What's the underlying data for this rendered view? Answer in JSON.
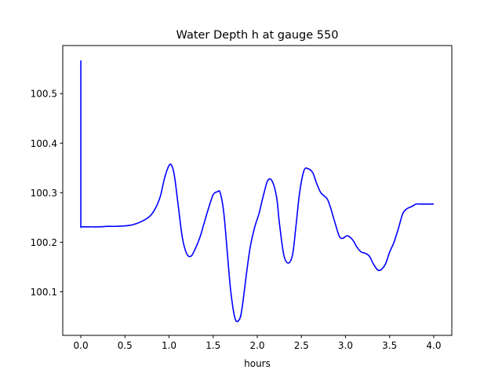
{
  "chart_data": {
    "type": "line",
    "title": "Water Depth h at gauge 550",
    "xlabel": "hours",
    "ylabel": "",
    "xlim": [
      -0.205,
      4.205
    ],
    "ylim": [
      100.012,
      100.597
    ],
    "xticks": [
      0.0,
      0.5,
      1.0,
      1.5,
      2.0,
      2.5,
      3.0,
      3.5,
      4.0
    ],
    "xtick_labels": [
      "0.0",
      "0.5",
      "1.0",
      "1.5",
      "2.0",
      "2.5",
      "3.0",
      "3.5",
      "4.0"
    ],
    "yticks": [
      100.1,
      100.2,
      100.3,
      100.4,
      100.5
    ],
    "ytick_labels": [
      "100.1",
      "100.2",
      "100.3",
      "100.4",
      "100.5"
    ],
    "grid": false,
    "series": [
      {
        "color": "#0000ff",
        "x": [
          0.0,
          0.0,
          0.0,
          0.1,
          0.2,
          0.3,
          0.4,
          0.5,
          0.55,
          0.6,
          0.65,
          0.7,
          0.75,
          0.8,
          0.85,
          0.9,
          0.95,
          1.0,
          1.03,
          1.06,
          1.1,
          1.15,
          1.2,
          1.25,
          1.3,
          1.35,
          1.4,
          1.45,
          1.5,
          1.55,
          1.58,
          1.62,
          1.66,
          1.7,
          1.75,
          1.8,
          1.83,
          1.88,
          1.92,
          1.97,
          2.02,
          2.07,
          2.12,
          2.17,
          2.22,
          2.25,
          2.3,
          2.35,
          2.4,
          2.44,
          2.48,
          2.53,
          2.58,
          2.63,
          2.67,
          2.72,
          2.77,
          2.8,
          2.83,
          2.88,
          2.93,
          2.97,
          3.02,
          3.08,
          3.13,
          3.18,
          3.22,
          3.27,
          3.32,
          3.38,
          3.45,
          3.5,
          3.55,
          3.6,
          3.65,
          3.7,
          3.75,
          3.8,
          3.85,
          3.9,
          3.95,
          4.0
        ],
        "y": [
          100.567,
          100.23,
          100.231,
          100.231,
          100.231,
          100.232,
          100.232,
          100.233,
          100.234,
          100.236,
          100.239,
          100.243,
          100.248,
          100.256,
          100.27,
          100.292,
          100.33,
          100.355,
          100.355,
          100.335,
          100.28,
          100.21,
          100.177,
          100.172,
          100.188,
          100.21,
          100.24,
          100.27,
          100.296,
          100.302,
          100.3,
          100.26,
          100.18,
          100.1,
          100.045,
          100.045,
          100.07,
          100.14,
          100.19,
          100.23,
          100.258,
          100.295,
          100.325,
          100.323,
          100.29,
          100.24,
          100.175,
          100.158,
          100.175,
          100.235,
          100.3,
          100.345,
          100.348,
          100.34,
          100.32,
          100.3,
          100.292,
          100.285,
          100.27,
          100.24,
          100.212,
          100.208,
          100.213,
          100.205,
          100.19,
          100.18,
          100.178,
          100.172,
          100.155,
          100.143,
          100.155,
          100.18,
          100.2,
          100.228,
          100.258,
          100.268,
          100.272,
          100.277,
          100.277,
          100.277,
          100.277,
          100.277
        ]
      }
    ]
  }
}
